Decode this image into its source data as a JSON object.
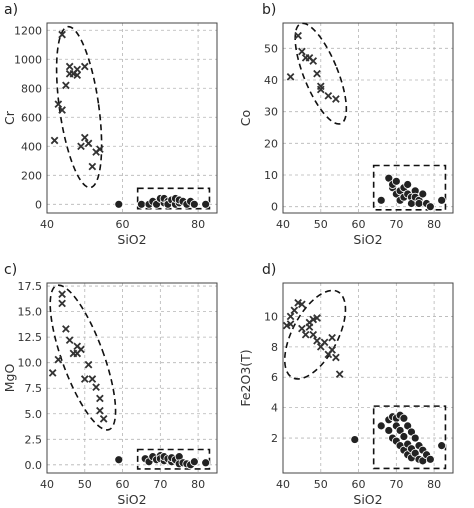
{
  "chart_data": [
    {
      "panel": "a)",
      "type": "scatter",
      "xlabel": "SiO2",
      "ylabel": "Cr",
      "xlim": [
        40,
        85
      ],
      "ylim": [
        -60,
        1250
      ],
      "xticks": [
        40,
        60,
        80
      ],
      "yticks": [
        0,
        200,
        400,
        600,
        800,
        1000,
        1200
      ],
      "grid": true,
      "series": [
        {
          "marker": "x",
          "points": [
            [
              42,
              440
            ],
            [
              43,
              690
            ],
            [
              44,
              1170
            ],
            [
              44,
              650
            ],
            [
              45,
              820
            ],
            [
              46,
              950
            ],
            [
              46,
              900
            ],
            [
              47,
              900
            ],
            [
              48,
              890
            ],
            [
              48,
              930
            ],
            [
              49,
              400
            ],
            [
              50,
              460
            ],
            [
              50,
              950
            ],
            [
              51,
              420
            ],
            [
              52,
              260
            ],
            [
              53,
              360
            ],
            [
              54,
              380
            ]
          ]
        },
        {
          "marker": "circle",
          "points": [
            [
              59,
              0
            ],
            [
              65,
              0
            ],
            [
              67,
              0
            ],
            [
              68,
              20
            ],
            [
              69,
              0
            ],
            [
              70,
              40
            ],
            [
              71,
              10
            ],
            [
              71,
              40
            ],
            [
              72,
              20
            ],
            [
              72,
              0
            ],
            [
              73,
              30
            ],
            [
              74,
              0
            ],
            [
              74,
              40
            ],
            [
              75,
              10
            ],
            [
              75,
              30
            ],
            [
              76,
              20
            ],
            [
              77,
              0
            ],
            [
              78,
              20
            ],
            [
              79,
              0
            ],
            [
              82,
              0
            ]
          ]
        }
      ],
      "annotations": [
        {
          "shape": "dashed-ellipse",
          "cx": 48.5,
          "cy": 670,
          "rx": 5.2,
          "ry": 560,
          "rotate": -8
        },
        {
          "shape": "dashed-rectangle",
          "x": [
            64,
            83
          ],
          "y": [
            -30,
            110
          ]
        }
      ]
    },
    {
      "panel": "b)",
      "type": "scatter",
      "xlabel": "SiO2",
      "ylabel": "Co",
      "xlim": [
        40,
        85
      ],
      "ylim": [
        -2,
        58
      ],
      "xticks": [
        40,
        50,
        60,
        70,
        80
      ],
      "yticks": [
        0,
        10,
        20,
        30,
        40,
        50
      ],
      "grid": true,
      "series": [
        {
          "marker": "x",
          "points": [
            [
              42,
              41
            ],
            [
              44,
              54
            ],
            [
              45,
              49
            ],
            [
              46,
              47
            ],
            [
              47,
              47
            ],
            [
              48,
              46
            ],
            [
              49,
              42
            ],
            [
              50,
              38
            ],
            [
              50,
              37
            ],
            [
              52,
              35
            ],
            [
              54,
              34
            ]
          ]
        },
        {
          "marker": "circle",
          "points": [
            [
              66,
              2
            ],
            [
              68,
              9
            ],
            [
              69,
              6
            ],
            [
              69,
              7
            ],
            [
              70,
              4
            ],
            [
              70,
              8
            ],
            [
              71,
              5
            ],
            [
              71,
              2
            ],
            [
              72,
              3
            ],
            [
              72,
              6
            ],
            [
              73,
              7
            ],
            [
              73,
              4
            ],
            [
              74,
              3
            ],
            [
              74,
              1
            ],
            [
              75,
              5
            ],
            [
              75,
              3
            ],
            [
              76,
              2
            ],
            [
              76,
              1
            ],
            [
              77,
              4
            ],
            [
              78,
              1
            ],
            [
              79,
              0
            ],
            [
              82,
              2
            ]
          ]
        }
      ],
      "annotations": [
        {
          "shape": "dashed-ellipse",
          "cx": 50,
          "cy": 42,
          "rx": 4.5,
          "ry": 17,
          "rotate": -22
        },
        {
          "shape": "dashed-rectangle",
          "x": [
            64,
            83
          ],
          "y": [
            -1,
            13
          ]
        }
      ]
    },
    {
      "panel": "c)",
      "type": "scatter",
      "xlabel": "SiO2",
      "ylabel": "MgO",
      "xlim": [
        40,
        85
      ],
      "ylim": [
        -0.8,
        17.8
      ],
      "xticks": [
        40,
        50,
        60,
        70,
        80
      ],
      "yticks": [
        0.0,
        2.5,
        5.0,
        7.5,
        10.0,
        12.5,
        15.0,
        17.5
      ],
      "grid": true,
      "series": [
        {
          "marker": "x",
          "points": [
            [
              41.5,
              9
            ],
            [
              43,
              10.3
            ],
            [
              44,
              16.7
            ],
            [
              44,
              15.8
            ],
            [
              45,
              13.3
            ],
            [
              46,
              12.2
            ],
            [
              47,
              10.9
            ],
            [
              48,
              11.6
            ],
            [
              48,
              10.9
            ],
            [
              49,
              11.3
            ],
            [
              50,
              8.4
            ],
            [
              51,
              9.8
            ],
            [
              52,
              8.4
            ],
            [
              53,
              7.6
            ],
            [
              54,
              6.5
            ],
            [
              54,
              5.3
            ],
            [
              55,
              4.5
            ]
          ]
        },
        {
          "marker": "circle",
          "points": [
            [
              59,
              0.5
            ],
            [
              66,
              0.6
            ],
            [
              67,
              0.3
            ],
            [
              68,
              0.8
            ],
            [
              69,
              0.5
            ],
            [
              70,
              0.9
            ],
            [
              70,
              0.6
            ],
            [
              71,
              0.4
            ],
            [
              71,
              0.8
            ],
            [
              72,
              0.6
            ],
            [
              73,
              0.3
            ],
            [
              73,
              0.7
            ],
            [
              74,
              0.5
            ],
            [
              75,
              0.8
            ],
            [
              75,
              0.1
            ],
            [
              76,
              0.2
            ],
            [
              77,
              0.1
            ],
            [
              78,
              0.0
            ],
            [
              79,
              0.3
            ],
            [
              82,
              0.2
            ]
          ]
        }
      ],
      "annotations": [
        {
          "shape": "dashed-ellipse",
          "cx": 49.5,
          "cy": 10.5,
          "rx": 5.5,
          "ry": 7.5,
          "rotate": -20
        },
        {
          "shape": "dashed-rectangle",
          "x": [
            64,
            83
          ],
          "y": [
            -0.4,
            1.5
          ]
        }
      ]
    },
    {
      "panel": "d)",
      "type": "scatter",
      "xlabel": "SiO2",
      "ylabel": "Fe2O3(T)",
      "xlim": [
        40,
        85
      ],
      "ylim": [
        -0.3,
        12.2
      ],
      "xticks": [
        40,
        50,
        60,
        70,
        80
      ],
      "yticks": [
        2,
        4,
        6,
        8,
        10
      ],
      "grid": true,
      "series": [
        {
          "marker": "x",
          "points": [
            [
              41,
              9.4
            ],
            [
              42,
              10
            ],
            [
              42,
              9.5
            ],
            [
              43,
              10.4
            ],
            [
              44,
              10.9
            ],
            [
              45,
              10.8
            ],
            [
              45,
              9.2
            ],
            [
              46,
              8.8
            ],
            [
              47,
              9.6
            ],
            [
              47,
              9.3
            ],
            [
              48,
              8.8
            ],
            [
              48,
              9.8
            ],
            [
              49,
              9.9
            ],
            [
              49,
              8.4
            ],
            [
              50,
              8.0
            ],
            [
              51,
              8.3
            ],
            [
              52,
              7.5
            ],
            [
              53,
              8.6
            ],
            [
              53,
              7.8
            ],
            [
              54,
              7.3
            ],
            [
              55,
              6.2
            ]
          ]
        },
        {
          "marker": "circle",
          "points": [
            [
              59,
              1.9
            ],
            [
              66,
              2.8
            ],
            [
              68,
              3.2
            ],
            [
              68,
              2.5
            ],
            [
              69,
              3.4
            ],
            [
              69,
              2.0
            ],
            [
              70,
              3.3
            ],
            [
              70,
              2.8
            ],
            [
              70,
              1.8
            ],
            [
              71,
              3.5
            ],
            [
              71,
              2.5
            ],
            [
              71,
              1.5
            ],
            [
              72,
              3.3
            ],
            [
              72,
              2.1
            ],
            [
              72,
              1.2
            ],
            [
              73,
              2.8
            ],
            [
              73,
              1.6
            ],
            [
              73,
              0.9
            ],
            [
              74,
              2.4
            ],
            [
              74,
              1.3
            ],
            [
              74,
              0.7
            ],
            [
              75,
              2.0
            ],
            [
              75,
              1.0
            ],
            [
              76,
              1.5
            ],
            [
              76,
              0.6
            ],
            [
              77,
              1.2
            ],
            [
              77,
              0.5
            ],
            [
              78,
              0.9
            ],
            [
              79,
              0.6
            ],
            [
              82,
              1.5
            ]
          ]
        }
      ],
      "annotations": [
        {
          "shape": "dashed-ellipse",
          "cx": 48.5,
          "cy": 8.8,
          "rx": 6,
          "ry": 3.2,
          "rotate": 28
        },
        {
          "shape": "dashed-rectangle",
          "x": [
            64,
            83
          ],
          "y": [
            0,
            4.1
          ]
        }
      ]
    }
  ]
}
